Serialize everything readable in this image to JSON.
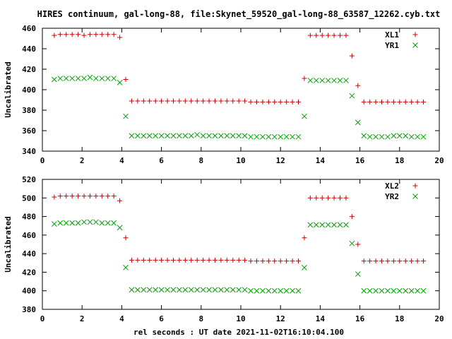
{
  "title": "HIRES continuum, gal-long-88, file:Skynet_59520_gal-long-88_63587_12262.cyb.txt",
  "xlabel": "rel seconds : UT date 2021-11-02T16:10:04.100",
  "chart_data": [
    {
      "type": "scatter",
      "ylabel": "Uncalibrated",
      "xlim": [
        0,
        20
      ],
      "ylim": [
        340,
        460
      ],
      "xticks": [
        0,
        2,
        4,
        6,
        8,
        10,
        12,
        14,
        16,
        18,
        20
      ],
      "yticks": [
        340,
        360,
        380,
        400,
        420,
        440,
        460
      ],
      "legend_position": "top-right",
      "grid": false,
      "series": [
        {
          "name": "XL1",
          "marker": "plus",
          "color": "#cc0000",
          "x": [
            0.6,
            0.9,
            1.2,
            1.5,
            1.8,
            2.1,
            2.4,
            2.7,
            3.0,
            3.3,
            3.6,
            3.9,
            4.2,
            4.5,
            4.8,
            5.1,
            5.4,
            5.7,
            6.0,
            6.3,
            6.6,
            6.9,
            7.2,
            7.5,
            7.8,
            8.1,
            8.4,
            8.7,
            9.0,
            9.3,
            9.6,
            9.9,
            10.2,
            10.5,
            10.8,
            11.1,
            11.4,
            11.7,
            12.0,
            12.3,
            12.6,
            12.9,
            13.2,
            13.5,
            13.8,
            14.1,
            14.4,
            14.7,
            15.0,
            15.3,
            15.6,
            15.9,
            16.2,
            16.5,
            16.8,
            17.1,
            17.4,
            17.7,
            18.0,
            18.3,
            18.6,
            18.9,
            19.2
          ],
          "y": [
            453,
            454,
            454,
            454,
            454,
            453,
            454,
            454,
            454,
            454,
            454,
            451,
            410,
            389,
            389,
            389,
            389,
            389,
            389,
            389,
            389,
            389,
            389,
            389,
            389,
            389,
            389,
            389,
            389,
            389,
            389,
            389,
            389,
            388,
            388,
            388,
            388,
            388,
            388,
            388,
            388,
            388,
            411,
            453,
            453,
            453,
            453,
            453,
            453,
            453,
            433,
            404,
            388,
            388,
            388,
            388,
            388,
            388,
            388,
            388,
            388,
            388,
            388
          ]
        },
        {
          "name": "YR1",
          "marker": "x",
          "color": "#00a000",
          "x": [
            0.6,
            0.9,
            1.2,
            1.5,
            1.8,
            2.1,
            2.4,
            2.7,
            3.0,
            3.3,
            3.6,
            3.9,
            4.2,
            4.5,
            4.8,
            5.1,
            5.4,
            5.7,
            6.0,
            6.3,
            6.6,
            6.9,
            7.2,
            7.5,
            7.8,
            8.1,
            8.4,
            8.7,
            9.0,
            9.3,
            9.6,
            9.9,
            10.2,
            10.5,
            10.8,
            11.1,
            11.4,
            11.7,
            12.0,
            12.3,
            12.6,
            12.9,
            13.2,
            13.5,
            13.8,
            14.1,
            14.4,
            14.7,
            15.0,
            15.3,
            15.6,
            15.9,
            16.2,
            16.5,
            16.8,
            17.1,
            17.4,
            17.7,
            18.0,
            18.3,
            18.6,
            18.9,
            19.2
          ],
          "y": [
            410,
            411,
            411,
            411,
            411,
            411,
            412,
            411,
            411,
            411,
            411,
            407,
            374,
            355,
            355,
            355,
            355,
            355,
            355,
            355,
            355,
            355,
            355,
            355,
            356,
            355,
            355,
            355,
            355,
            355,
            355,
            355,
            355,
            354,
            354,
            354,
            354,
            354,
            354,
            354,
            354,
            354,
            374,
            409,
            409,
            409,
            409,
            409,
            409,
            409,
            394,
            368,
            355,
            354,
            354,
            354,
            354,
            355,
            355,
            355,
            354,
            354,
            354
          ]
        }
      ]
    },
    {
      "type": "scatter",
      "ylabel": "Uncalibrated",
      "xlim": [
        0,
        20
      ],
      "ylim": [
        380,
        520
      ],
      "xticks": [
        0,
        2,
        4,
        6,
        8,
        10,
        12,
        14,
        16,
        18,
        20
      ],
      "yticks": [
        380,
        400,
        420,
        440,
        460,
        480,
        500,
        520
      ],
      "legend_position": "top-right",
      "grid": false,
      "series": [
        {
          "name": "XL2",
          "marker": "plus",
          "color": "#cc0000",
          "x": [
            0.6,
            0.9,
            1.2,
            1.5,
            1.8,
            2.1,
            2.4,
            2.7,
            3.0,
            3.3,
            3.6,
            3.9,
            4.2,
            4.5,
            4.8,
            5.1,
            5.4,
            5.7,
            6.0,
            6.3,
            6.6,
            6.9,
            7.2,
            7.5,
            7.8,
            8.1,
            8.4,
            8.7,
            9.0,
            9.3,
            9.6,
            9.9,
            10.2,
            10.5,
            10.8,
            11.1,
            11.4,
            11.7,
            12.0,
            12.3,
            12.6,
            12.9,
            13.2,
            13.5,
            13.8,
            14.1,
            14.4,
            14.7,
            15.0,
            15.3,
            15.6,
            15.9,
            16.2,
            16.5,
            16.8,
            17.1,
            17.4,
            17.7,
            18.0,
            18.3,
            18.6,
            18.9,
            19.2
          ],
          "y": [
            501,
            502,
            502,
            502,
            502,
            502,
            502,
            502,
            502,
            502,
            502,
            497,
            457,
            433,
            433,
            433,
            433,
            433,
            433,
            433,
            433,
            433,
            433,
            433,
            433,
            433,
            433,
            433,
            433,
            433,
            433,
            433,
            433,
            432,
            432,
            432,
            432,
            432,
            432,
            432,
            432,
            432,
            457,
            500,
            500,
            500,
            500,
            500,
            500,
            500,
            480,
            450,
            432,
            432,
            432,
            432,
            432,
            432,
            432,
            432,
            432,
            432,
            432
          ]
        },
        {
          "name": "YR2",
          "marker": "x",
          "color": "#00a000",
          "x": [
            0.6,
            0.9,
            1.2,
            1.5,
            1.8,
            2.1,
            2.4,
            2.7,
            3.0,
            3.3,
            3.6,
            3.9,
            4.2,
            4.5,
            4.8,
            5.1,
            5.4,
            5.7,
            6.0,
            6.3,
            6.6,
            6.9,
            7.2,
            7.5,
            7.8,
            8.1,
            8.4,
            8.7,
            9.0,
            9.3,
            9.6,
            9.9,
            10.2,
            10.5,
            10.8,
            11.1,
            11.4,
            11.7,
            12.0,
            12.3,
            12.6,
            12.9,
            13.2,
            13.5,
            13.8,
            14.1,
            14.4,
            14.7,
            15.0,
            15.3,
            15.6,
            15.9,
            16.2,
            16.5,
            16.8,
            17.1,
            17.4,
            17.7,
            18.0,
            18.3,
            18.6,
            18.9,
            19.2
          ],
          "y": [
            472,
            473,
            473,
            473,
            473,
            474,
            474,
            474,
            473,
            473,
            473,
            468,
            425,
            401,
            401,
            401,
            401,
            401,
            401,
            401,
            401,
            401,
            401,
            401,
            401,
            401,
            401,
            401,
            401,
            401,
            401,
            401,
            401,
            400,
            400,
            400,
            400,
            400,
            400,
            400,
            400,
            400,
            425,
            471,
            471,
            471,
            471,
            471,
            471,
            471,
            451,
            418,
            400,
            400,
            400,
            400,
            400,
            400,
            400,
            400,
            400,
            400,
            400
          ]
        }
      ]
    }
  ]
}
